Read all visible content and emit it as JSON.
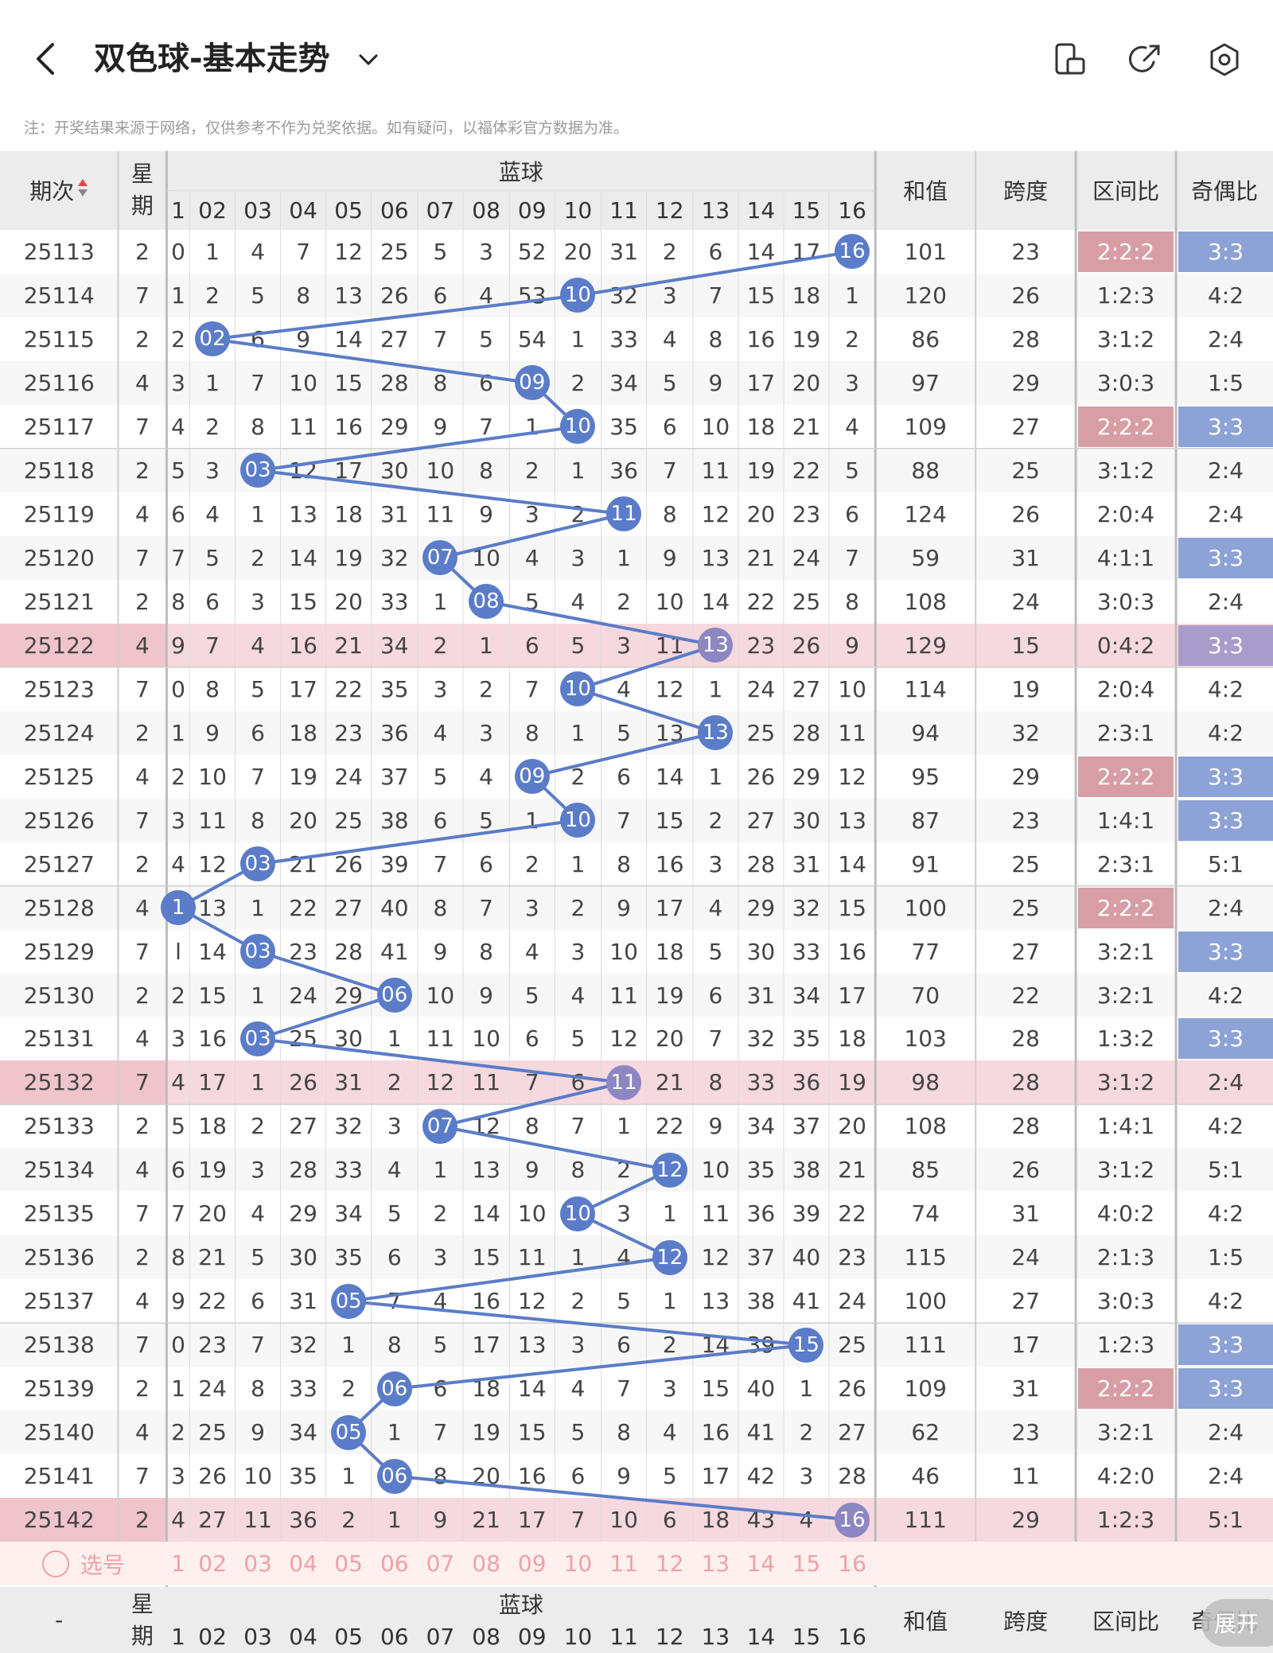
{
  "header": {
    "title": "双色球-基本走势",
    "back_icon": "back-arrow-icon",
    "dropdown_icon": "chevron-down-icon",
    "icons": [
      "phone-icon",
      "share-icon",
      "settings-icon"
    ]
  },
  "note": "注：开奖结果来源于网络，仅供参考不作为兑奖依据。如有疑问，以福体彩官方数据为准。",
  "table": {
    "headers": {
      "period": "期次",
      "weekday": "星期",
      "blue_group": "蓝球",
      "sum": "和值",
      "span": "跨度",
      "zone_ratio": "区间比",
      "odd_even_ratio": "奇偶比"
    },
    "blue_columns": [
      "1",
      "02",
      "03",
      "04",
      "05",
      "06",
      "07",
      "08",
      "09",
      "10",
      "11",
      "12",
      "13",
      "14",
      "15",
      "16"
    ],
    "rows": [
      {
        "period": "25113",
        "weekday": "2",
        "blue": 16,
        "cells": [
          "0",
          "1",
          "4",
          "7",
          "12",
          "25",
          "5",
          "3",
          "52",
          "20",
          "31",
          "2",
          "6",
          "14",
          "17",
          "16"
        ],
        "sum": "101",
        "span": "23",
        "zone": "2:2:2",
        "odd_even": "3:3",
        "zone_hl": true,
        "oe_hl": true,
        "row_hl": false
      },
      {
        "period": "25114",
        "weekday": "7",
        "blue": 10,
        "cells": [
          "1",
          "2",
          "5",
          "8",
          "13",
          "26",
          "6",
          "4",
          "53",
          "10",
          "32",
          "3",
          "7",
          "15",
          "18",
          "1"
        ],
        "sum": "120",
        "span": "26",
        "zone": "1:2:3",
        "odd_even": "4:2",
        "zone_hl": false,
        "oe_hl": false,
        "row_hl": false
      },
      {
        "period": "25115",
        "weekday": "2",
        "blue": 2,
        "cells": [
          "2",
          "02",
          "6",
          "9",
          "14",
          "27",
          "7",
          "5",
          "54",
          "1",
          "33",
          "4",
          "8",
          "16",
          "19",
          "2"
        ],
        "sum": "86",
        "span": "28",
        "zone": "3:1:2",
        "odd_even": "2:4",
        "zone_hl": false,
        "oe_hl": false,
        "row_hl": false
      },
      {
        "period": "25116",
        "weekday": "4",
        "blue": 9,
        "cells": [
          "3",
          "1",
          "7",
          "10",
          "15",
          "28",
          "8",
          "6",
          "09",
          "2",
          "34",
          "5",
          "9",
          "17",
          "20",
          "3"
        ],
        "sum": "97",
        "span": "29",
        "zone": "3:0:3",
        "odd_even": "1:5",
        "zone_hl": false,
        "oe_hl": false,
        "row_hl": false
      },
      {
        "period": "25117",
        "weekday": "7",
        "blue": 10,
        "cells": [
          "4",
          "2",
          "8",
          "11",
          "16",
          "29",
          "9",
          "7",
          "1",
          "10",
          "35",
          "6",
          "10",
          "18",
          "21",
          "4"
        ],
        "sum": "109",
        "span": "27",
        "zone": "2:2:2",
        "odd_even": "3:3",
        "zone_hl": true,
        "oe_hl": true,
        "row_hl": false
      },
      {
        "period": "25118",
        "weekday": "2",
        "blue": 3,
        "cells": [
          "5",
          "3",
          "03",
          "12",
          "17",
          "30",
          "10",
          "8",
          "2",
          "1",
          "36",
          "7",
          "11",
          "19",
          "22",
          "5"
        ],
        "sum": "88",
        "span": "25",
        "zone": "3:1:2",
        "odd_even": "2:4",
        "zone_hl": false,
        "oe_hl": false,
        "row_hl": false
      },
      {
        "period": "25119",
        "weekday": "4",
        "blue": 11,
        "cells": [
          "6",
          "4",
          "1",
          "13",
          "18",
          "31",
          "11",
          "9",
          "3",
          "2",
          "11",
          "8",
          "12",
          "20",
          "23",
          "6"
        ],
        "sum": "124",
        "span": "26",
        "zone": "2:0:4",
        "odd_even": "2:4",
        "zone_hl": false,
        "oe_hl": false,
        "row_hl": false
      },
      {
        "period": "25120",
        "weekday": "7",
        "blue": 7,
        "cells": [
          "7",
          "5",
          "2",
          "14",
          "19",
          "32",
          "07",
          "10",
          "4",
          "3",
          "1",
          "9",
          "13",
          "21",
          "24",
          "7"
        ],
        "sum": "59",
        "span": "31",
        "zone": "4:1:1",
        "odd_even": "3:3",
        "zone_hl": false,
        "oe_hl": true,
        "row_hl": false
      },
      {
        "period": "25121",
        "weekday": "2",
        "blue": 8,
        "cells": [
          "8",
          "6",
          "3",
          "15",
          "20",
          "33",
          "1",
          "08",
          "5",
          "4",
          "2",
          "10",
          "14",
          "22",
          "25",
          "8"
        ],
        "sum": "108",
        "span": "24",
        "zone": "3:0:3",
        "odd_even": "2:4",
        "zone_hl": false,
        "oe_hl": false,
        "row_hl": false
      },
      {
        "period": "25122",
        "weekday": "4",
        "blue": 13,
        "cells": [
          "9",
          "7",
          "4",
          "16",
          "21",
          "34",
          "2",
          "1",
          "6",
          "5",
          "3",
          "11",
          "13",
          "23",
          "26",
          "9"
        ],
        "sum": "129",
        "span": "15",
        "zone": "0:4:2",
        "odd_even": "3:3",
        "zone_hl": false,
        "oe_hl": true,
        "row_hl": true
      },
      {
        "period": "25123",
        "weekday": "7",
        "blue": 10,
        "cells": [
          "0",
          "8",
          "5",
          "17",
          "22",
          "35",
          "3",
          "2",
          "7",
          "10",
          "4",
          "12",
          "1",
          "24",
          "27",
          "10"
        ],
        "sum": "114",
        "span": "19",
        "zone": "2:0:4",
        "odd_even": "4:2",
        "zone_hl": false,
        "oe_hl": false,
        "row_hl": false
      },
      {
        "period": "25124",
        "weekday": "2",
        "blue": 13,
        "cells": [
          "1",
          "9",
          "6",
          "18",
          "23",
          "36",
          "4",
          "3",
          "8",
          "1",
          "5",
          "13",
          "13",
          "25",
          "28",
          "11"
        ],
        "sum": "94",
        "span": "32",
        "zone": "2:3:1",
        "odd_even": "4:2",
        "zone_hl": false,
        "oe_hl": false,
        "row_hl": false
      },
      {
        "period": "25125",
        "weekday": "4",
        "blue": 9,
        "cells": [
          "2",
          "10",
          "7",
          "19",
          "24",
          "37",
          "5",
          "4",
          "09",
          "2",
          "6",
          "14",
          "1",
          "26",
          "29",
          "12"
        ],
        "sum": "95",
        "span": "29",
        "zone": "2:2:2",
        "odd_even": "3:3",
        "zone_hl": true,
        "oe_hl": true,
        "row_hl": false
      },
      {
        "period": "25126",
        "weekday": "7",
        "blue": 10,
        "cells": [
          "3",
          "11",
          "8",
          "20",
          "25",
          "38",
          "6",
          "5",
          "1",
          "10",
          "7",
          "15",
          "2",
          "27",
          "30",
          "13"
        ],
        "sum": "87",
        "span": "23",
        "zone": "1:4:1",
        "odd_even": "3:3",
        "zone_hl": false,
        "oe_hl": true,
        "row_hl": false
      },
      {
        "period": "25127",
        "weekday": "2",
        "blue": 3,
        "cells": [
          "4",
          "12",
          "03",
          "21",
          "26",
          "39",
          "7",
          "6",
          "2",
          "1",
          "8",
          "16",
          "3",
          "28",
          "31",
          "14"
        ],
        "sum": "91",
        "span": "25",
        "zone": "2:3:1",
        "odd_even": "5:1",
        "zone_hl": false,
        "oe_hl": false,
        "row_hl": false
      },
      {
        "period": "25128",
        "weekday": "4",
        "blue": 1,
        "cells": [
          "1",
          "13",
          "1",
          "22",
          "27",
          "40",
          "8",
          "7",
          "3",
          "2",
          "9",
          "17",
          "4",
          "29",
          "32",
          "15"
        ],
        "sum": "100",
        "span": "25",
        "zone": "2:2:2",
        "odd_even": "2:4",
        "zone_hl": true,
        "oe_hl": false,
        "row_hl": false
      },
      {
        "period": "25129",
        "weekday": "7",
        "blue": 3,
        "cells": [
          "l",
          "14",
          "03",
          "23",
          "28",
          "41",
          "9",
          "8",
          "4",
          "3",
          "10",
          "18",
          "5",
          "30",
          "33",
          "16"
        ],
        "sum": "77",
        "span": "27",
        "zone": "3:2:1",
        "odd_even": "3:3",
        "zone_hl": false,
        "oe_hl": true,
        "row_hl": false
      },
      {
        "period": "25130",
        "weekday": "2",
        "blue": 6,
        "cells": [
          "2",
          "15",
          "1",
          "24",
          "29",
          "06",
          "10",
          "9",
          "5",
          "4",
          "11",
          "19",
          "6",
          "31",
          "34",
          "17"
        ],
        "sum": "70",
        "span": "22",
        "zone": "3:2:1",
        "odd_even": "4:2",
        "zone_hl": false,
        "oe_hl": false,
        "row_hl": false
      },
      {
        "period": "25131",
        "weekday": "4",
        "blue": 3,
        "cells": [
          "3",
          "16",
          "03",
          "25",
          "30",
          "1",
          "11",
          "10",
          "6",
          "5",
          "12",
          "20",
          "7",
          "32",
          "35",
          "18"
        ],
        "sum": "103",
        "span": "28",
        "zone": "1:3:2",
        "odd_even": "3:3",
        "zone_hl": false,
        "oe_hl": true,
        "row_hl": false
      },
      {
        "period": "25132",
        "weekday": "7",
        "blue": 11,
        "cells": [
          "4",
          "17",
          "1",
          "26",
          "31",
          "2",
          "12",
          "11",
          "7",
          "6",
          "11",
          "21",
          "8",
          "33",
          "36",
          "19"
        ],
        "sum": "98",
        "span": "28",
        "zone": "3:1:2",
        "odd_even": "2:4",
        "zone_hl": false,
        "oe_hl": false,
        "row_hl": true
      },
      {
        "period": "25133",
        "weekday": "2",
        "blue": 7,
        "cells": [
          "5",
          "18",
          "2",
          "27",
          "32",
          "3",
          "07",
          "12",
          "8",
          "7",
          "1",
          "22",
          "9",
          "34",
          "37",
          "20"
        ],
        "sum": "108",
        "span": "28",
        "zone": "1:4:1",
        "odd_even": "4:2",
        "zone_hl": false,
        "oe_hl": false,
        "row_hl": false
      },
      {
        "period": "25134",
        "weekday": "4",
        "blue": 12,
        "cells": [
          "6",
          "19",
          "3",
          "28",
          "33",
          "4",
          "1",
          "13",
          "9",
          "8",
          "2",
          "12",
          "10",
          "35",
          "38",
          "21"
        ],
        "sum": "85",
        "span": "26",
        "zone": "3:1:2",
        "odd_even": "5:1",
        "zone_hl": false,
        "oe_hl": false,
        "row_hl": false
      },
      {
        "period": "25135",
        "weekday": "7",
        "blue": 10,
        "cells": [
          "7",
          "20",
          "4",
          "29",
          "34",
          "5",
          "2",
          "14",
          "10",
          "10",
          "3",
          "1",
          "11",
          "36",
          "39",
          "22"
        ],
        "sum": "74",
        "span": "31",
        "zone": "4:0:2",
        "odd_even": "4:2",
        "zone_hl": false,
        "oe_hl": false,
        "row_hl": false
      },
      {
        "period": "25136",
        "weekday": "2",
        "blue": 12,
        "cells": [
          "8",
          "21",
          "5",
          "30",
          "35",
          "6",
          "3",
          "15",
          "11",
          "1",
          "4",
          "12",
          "12",
          "37",
          "40",
          "23"
        ],
        "sum": "115",
        "span": "24",
        "zone": "2:1:3",
        "odd_even": "1:5",
        "zone_hl": false,
        "oe_hl": false,
        "row_hl": false
      },
      {
        "period": "25137",
        "weekday": "4",
        "blue": 5,
        "cells": [
          "9",
          "22",
          "6",
          "31",
          "05",
          "7",
          "4",
          "16",
          "12",
          "2",
          "5",
          "1",
          "13",
          "38",
          "41",
          "24"
        ],
        "sum": "100",
        "span": "27",
        "zone": "3:0:3",
        "odd_even": "4:2",
        "zone_hl": false,
        "oe_hl": false,
        "row_hl": false
      },
      {
        "period": "25138",
        "weekday": "7",
        "blue": 15,
        "cells": [
          "0",
          "23",
          "7",
          "32",
          "1",
          "8",
          "5",
          "17",
          "13",
          "3",
          "6",
          "2",
          "14",
          "39",
          "15",
          "25"
        ],
        "sum": "111",
        "span": "17",
        "zone": "1:2:3",
        "odd_even": "3:3",
        "zone_hl": false,
        "oe_hl": true,
        "row_hl": false
      },
      {
        "period": "25139",
        "weekday": "2",
        "blue": 6,
        "cells": [
          "1",
          "24",
          "8",
          "33",
          "2",
          "06",
          "6",
          "18",
          "14",
          "4",
          "7",
          "3",
          "15",
          "40",
          "1",
          "26"
        ],
        "sum": "109",
        "span": "31",
        "zone": "2:2:2",
        "odd_even": "3:3",
        "zone_hl": true,
        "oe_hl": true,
        "row_hl": false
      },
      {
        "period": "25140",
        "weekday": "4",
        "blue": 5,
        "cells": [
          "2",
          "25",
          "9",
          "34",
          "05",
          "1",
          "7",
          "19",
          "15",
          "5",
          "8",
          "4",
          "16",
          "41",
          "2",
          "27"
        ],
        "sum": "62",
        "span": "23",
        "zone": "3:2:1",
        "odd_even": "2:4",
        "zone_hl": false,
        "oe_hl": false,
        "row_hl": false
      },
      {
        "period": "25141",
        "weekday": "7",
        "blue": 6,
        "cells": [
          "3",
          "26",
          "10",
          "35",
          "1",
          "06",
          "8",
          "20",
          "16",
          "6",
          "9",
          "5",
          "17",
          "42",
          "3",
          "28"
        ],
        "sum": "46",
        "span": "11",
        "zone": "4:2:0",
        "odd_even": "2:4",
        "zone_hl": false,
        "oe_hl": false,
        "row_hl": false
      },
      {
        "period": "25142",
        "weekday": "2",
        "blue": 16,
        "cells": [
          "4",
          "27",
          "11",
          "36",
          "2",
          "1",
          "9",
          "21",
          "17",
          "7",
          "10",
          "6",
          "18",
          "43",
          "4",
          "16"
        ],
        "sum": "111",
        "span": "29",
        "zone": "1:2:3",
        "odd_even": "5:1",
        "zone_hl": false,
        "oe_hl": false,
        "row_hl": true
      }
    ],
    "select_label": "选号",
    "footer_period": "-"
  },
  "expand_label": "展开",
  "colors": {
    "ball": "#5b7cc8",
    "ball_highlight": "#8c87c2",
    "line": "#5b7cc8",
    "row_highlight": "#f6d9de",
    "zone_highlight": "#d79ea6",
    "oe_highlight": "#8da2d6",
    "oe_highlight_row": "#a89ccb",
    "select_text": "#f0a0a8"
  }
}
